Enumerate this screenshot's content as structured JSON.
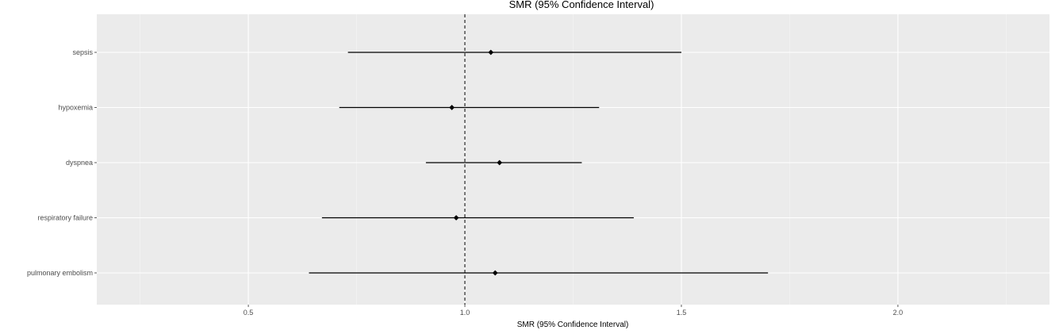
{
  "chart_data": {
    "type": "scatter",
    "subtype": "forest-plot",
    "title": "SMR (95% Confidence Interval)",
    "xlabel": "SMR (95% Confidence Interval)",
    "ylabel": "",
    "xlim": [
      0.15,
      2.35
    ],
    "x_ticks": [
      0.5,
      1.0,
      1.5,
      2.0
    ],
    "x_tick_labels": [
      "0.5",
      "1.0",
      "1.5",
      "2.0"
    ],
    "x_minor_ticks": [
      0.25,
      0.75,
      1.25,
      1.75,
      2.25
    ],
    "reference_line": 1.0,
    "grid": true,
    "legend": "none",
    "categories": [
      "sepsis",
      "hypoxemia",
      "dyspnea",
      "respiratory failure",
      "pulmonary embolism"
    ],
    "estimates": [
      1.06,
      0.97,
      1.08,
      0.98,
      1.07
    ],
    "lower": [
      0.73,
      0.71,
      0.91,
      0.67,
      0.64
    ],
    "upper": [
      1.5,
      1.31,
      1.27,
      1.39,
      1.7
    ],
    "colors": {
      "panel_background": "#ebebeb",
      "grid_major": "#ffffff",
      "grid_minor": "#f5f5f5",
      "point": "#000000",
      "interval": "#000000",
      "reference_line": "#000000",
      "tick_label": "#4d4d4d",
      "axis_title": "#000000"
    }
  }
}
